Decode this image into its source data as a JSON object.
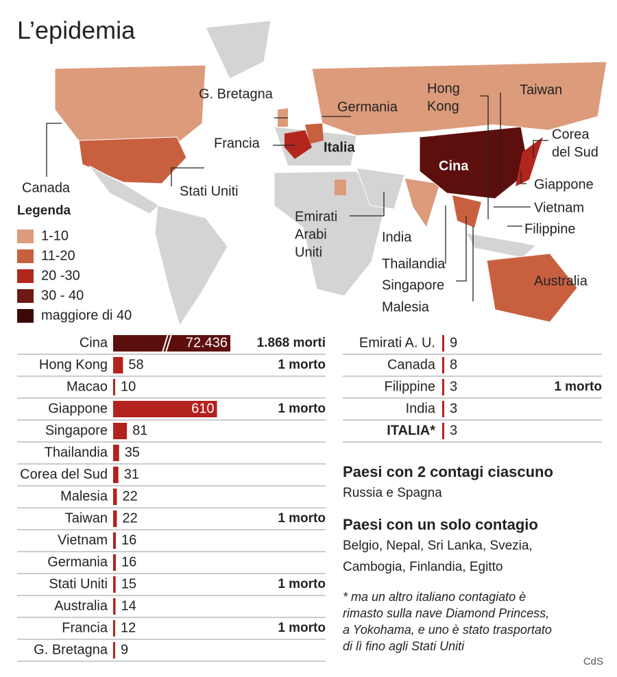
{
  "title": "L’epidemia",
  "map": {
    "labels": [
      [
        "Canada"
      ],
      [
        "G. Bretagna"
      ],
      [
        "Francia"
      ],
      [
        "Germania"
      ],
      [
        "Italia"
      ],
      [
        "Stati Uniti"
      ],
      [
        "Emirati",
        "Arabi",
        "Uniti"
      ],
      [
        "Hong",
        "Kong"
      ],
      [
        "Taiwan"
      ],
      [
        "Cina"
      ],
      [
        "Corea",
        "del Sud"
      ],
      [
        "Giappone"
      ],
      [
        "Vietnam"
      ],
      [
        "Filippine"
      ],
      [
        "India"
      ],
      [
        "Thailandia"
      ],
      [
        "Singapore"
      ],
      [
        "Malesia"
      ],
      [
        "Australia"
      ]
    ],
    "legend": {
      "title": "Legenda",
      "items": [
        "1-10",
        "11-20",
        "20 -30",
        "30 - 40",
        "maggiore di 40"
      ],
      "colors": [
        "#dc9b7b",
        "#c8603f",
        "#b3261e",
        "#6e1912",
        "#3d0806"
      ]
    }
  },
  "chart_data": [
    {
      "type": "bar",
      "orientation": "horizontal",
      "color": "#b3221f",
      "break_color": "#5c0f0d",
      "axis_break": true,
      "xlim": [
        0,
        620
      ],
      "categories": [
        "Cina",
        "Hong Kong",
        "Macao",
        "Giappone",
        "Singapore",
        "Thailandia",
        "Corea del Sud",
        "Malesia",
        "Taiwan",
        "Vietnam",
        "Germania",
        "Stati Uniti",
        "Australia",
        "Francia",
        "G. Bretagna"
      ],
      "values": [
        72436,
        58,
        10,
        610,
        81,
        35,
        31,
        22,
        22,
        16,
        16,
        15,
        14,
        12,
        9
      ],
      "value_labels": [
        "72.436",
        "58",
        "10",
        "610",
        "81",
        "35",
        "31",
        "22",
        "22",
        "16",
        "16",
        "15",
        "14",
        "12",
        "9"
      ],
      "annotations": [
        "1.868 morti",
        "1 morto",
        null,
        "1 morto",
        null,
        null,
        null,
        null,
        "1 morto",
        null,
        null,
        "1 morto",
        null,
        "1 morto",
        null
      ]
    },
    {
      "type": "bar",
      "orientation": "horizontal",
      "color": "#b3221f",
      "xlim": [
        0,
        620
      ],
      "categories": [
        "Emirati A. U.",
        "Canada",
        "Filippine",
        "India",
        "ITALIA*"
      ],
      "values": [
        9,
        8,
        3,
        3,
        3
      ],
      "annotations": [
        null,
        null,
        "1 morto",
        null,
        null
      ]
    }
  ],
  "notes": [
    {
      "heading": "Paesi con 2 contagi ciascuno",
      "lines": [
        "Russia e Spagna"
      ]
    },
    {
      "heading": "Paesi con un solo contagio",
      "lines": [
        "Belgio, Nepal, Sri Lanka, Svezia,",
        "Cambogia, Finlandia, Egitto"
      ]
    }
  ],
  "footnote": [
    "* ma un altro italiano contagiato è",
    "rimasto sulla nave Diamond Princess,",
    "a Yokohama, e uno è stato trasportato",
    "di lì fino agli Stati Uniti"
  ],
  "source": "CdS"
}
